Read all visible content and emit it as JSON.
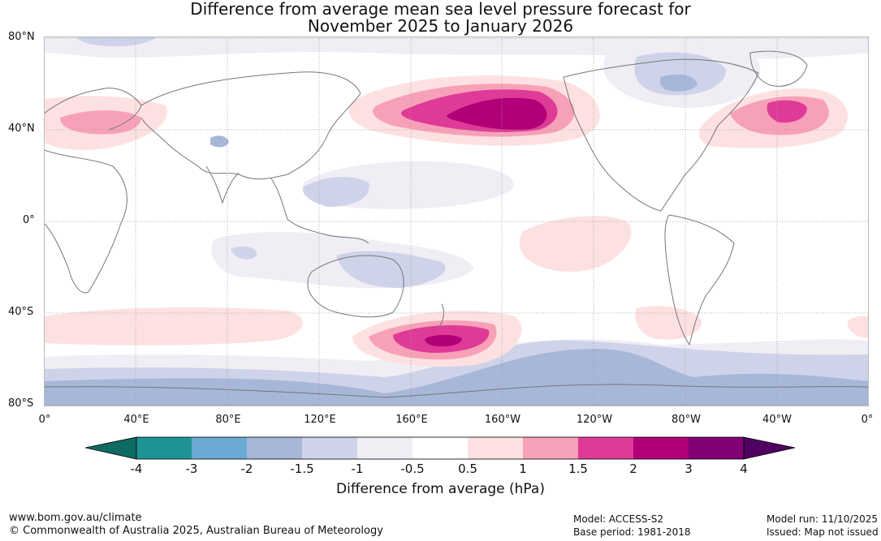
{
  "title": {
    "line1": "Difference from average mean sea level pressure forecast for",
    "line2": "November 2025 to January 2026"
  },
  "latitude_labels": [
    "80°N",
    "40°N",
    "0°",
    "40°S",
    "80°S"
  ],
  "longitude_labels": [
    "0°",
    "40°E",
    "80°E",
    "120°E",
    "160°E",
    "160°W",
    "120°W",
    "80°W",
    "40°W",
    "0°"
  ],
  "colorbar": {
    "title": "Difference from average (hPa)",
    "tick_labels": [
      "-4",
      "-3",
      "-2",
      "-1.5",
      "-1",
      "-0.5",
      "0.5",
      "1",
      "1.5",
      "2",
      "3",
      "4"
    ],
    "colors": [
      "#0f6a62",
      "#1e9396",
      "#6aaad4",
      "#a7b7d8",
      "#cfd3e9",
      "#f0edf5",
      "#ffffff",
      "#fde1e1",
      "#f7a1b8",
      "#df3a97",
      "#b10077",
      "#820076",
      "#4f0060"
    ]
  },
  "footer": {
    "website": "www.bom.gov.au/climate",
    "copyright": "© Commonwealth of Australia 2025, Australian Bureau of Meteorology",
    "model": "Model: ACCESS-S2",
    "base_period": "Base period: 1981-2018",
    "model_run": "Model run: 11/10/2025",
    "issued": "Issued: Map not issued"
  }
}
